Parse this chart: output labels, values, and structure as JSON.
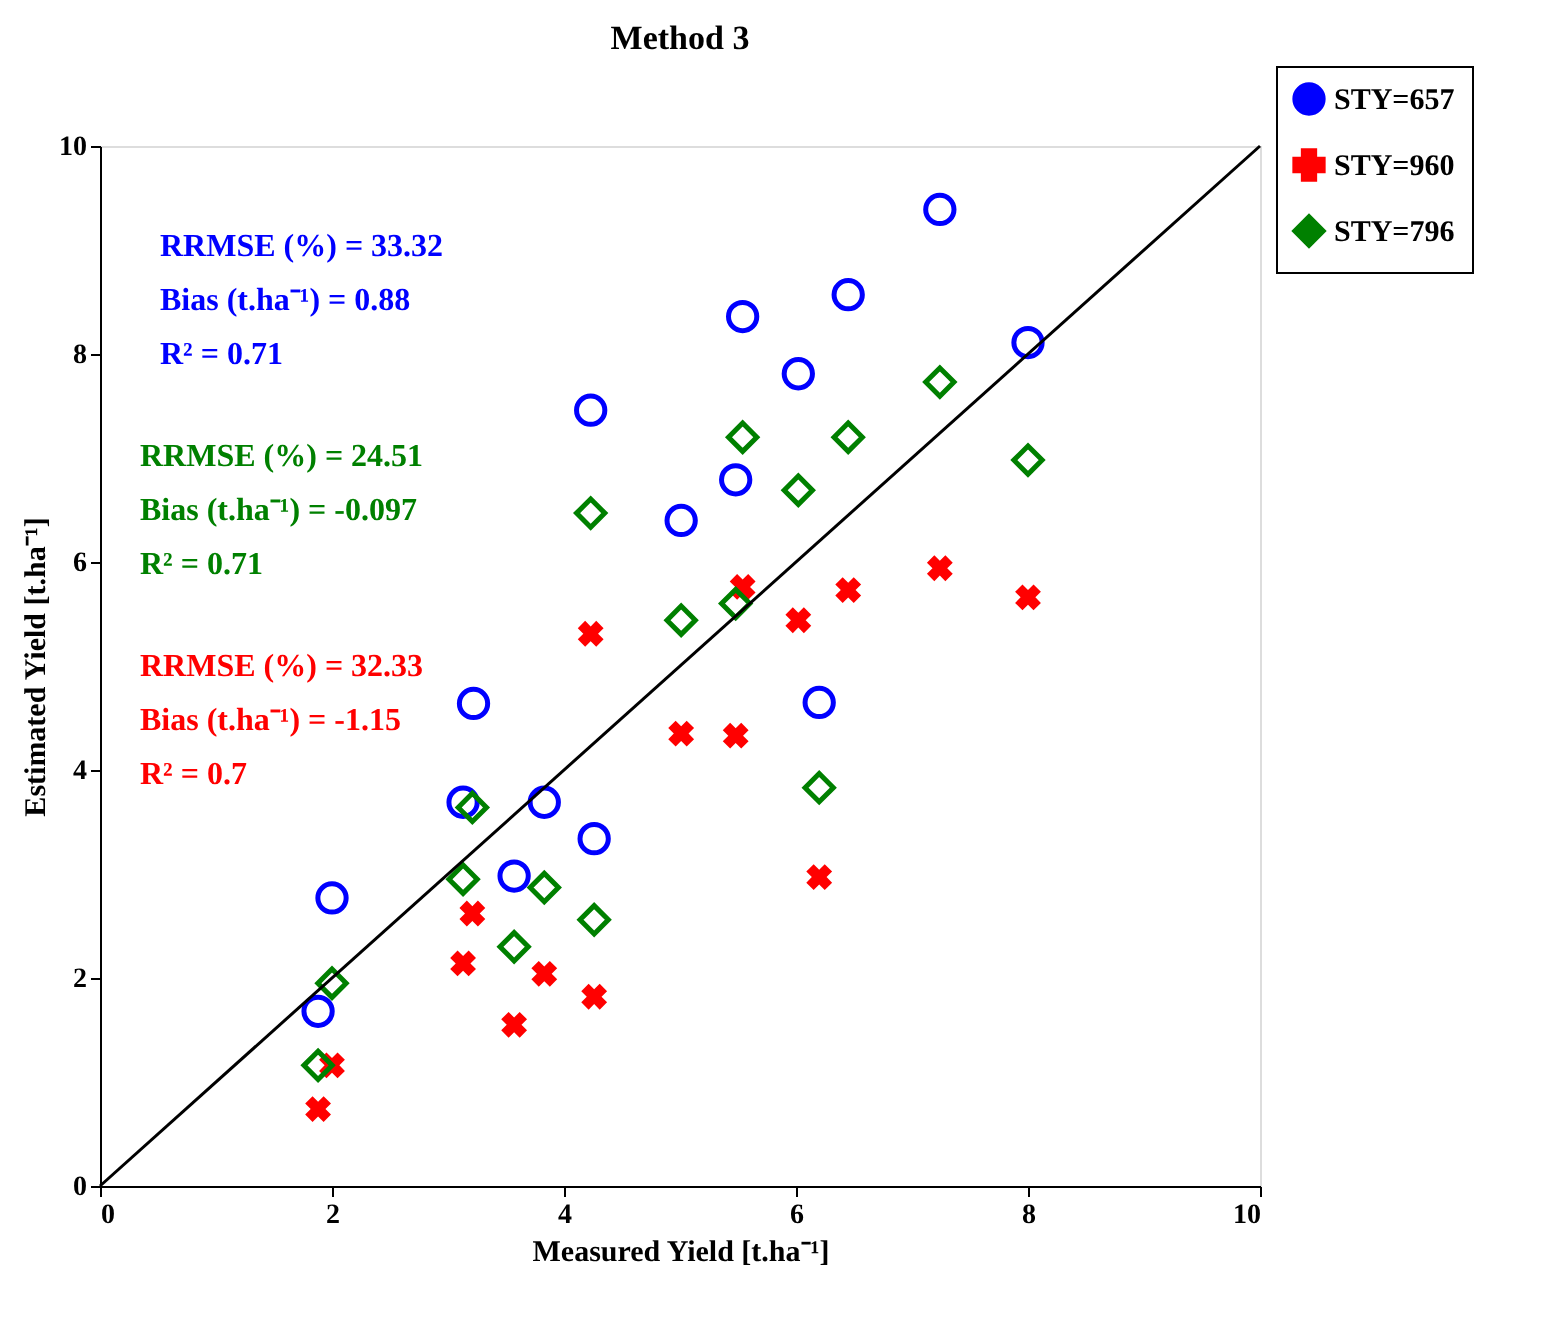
{
  "chart_data": {
    "type": "scatter",
    "title": "Method 3",
    "xlabel": "Measured Yield [t.ha⁻¹]",
    "ylabel": "Estimated Yield [t.ha⁻¹]",
    "xlim": [
      0,
      10
    ],
    "ylim": [
      0,
      10
    ],
    "xticks": [
      0,
      2,
      4,
      6,
      8,
      10
    ],
    "yticks": [
      0,
      2,
      4,
      6,
      8,
      10
    ],
    "grid": false,
    "legend": "top right",
    "series": [
      {
        "name": "STY=657",
        "color": "#0000ff",
        "marker": "circle",
        "x": [
          1.88,
          2.0,
          3.13,
          3.22,
          3.57,
          3.83,
          4.26,
          4.23,
          5.01,
          5.48,
          5.54,
          6.02,
          6.2,
          6.45,
          7.24,
          8.0
        ],
        "values": [
          1.68,
          2.77,
          3.69,
          4.64,
          2.98,
          3.69,
          3.34,
          7.46,
          6.4,
          6.79,
          8.36,
          7.81,
          4.65,
          8.57,
          9.39,
          8.11
        ]
      },
      {
        "name": "STY=960",
        "color": "#ff0000",
        "marker": "cross",
        "x": [
          1.88,
          2.0,
          3.13,
          3.21,
          3.57,
          3.83,
          4.26,
          4.23,
          5.01,
          5.48,
          5.54,
          6.02,
          6.2,
          6.45,
          7.24,
          8.0
        ],
        "values": [
          0.74,
          1.16,
          2.14,
          2.62,
          1.55,
          2.04,
          1.82,
          5.31,
          4.35,
          4.33,
          5.76,
          5.44,
          2.97,
          5.73,
          5.94,
          5.66
        ]
      },
      {
        "name": "STY=796",
        "color": "#008000",
        "marker": "diamond",
        "x": [
          1.88,
          2.0,
          3.13,
          3.21,
          3.57,
          3.83,
          4.26,
          4.23,
          5.01,
          5.48,
          5.54,
          6.02,
          6.2,
          6.45,
          7.24,
          8.0
        ],
        "values": [
          1.16,
          1.95,
          2.95,
          3.64,
          2.3,
          2.87,
          2.56,
          6.47,
          5.44,
          5.6,
          7.2,
          6.69,
          3.83,
          7.2,
          7.73,
          6.98
        ]
      },
      {
        "type": "line",
        "color": "#000000",
        "marker": "none",
        "x": [
          0,
          10
        ],
        "values": [
          0,
          10
        ]
      }
    ],
    "annotations": [
      "RRMSE (%) = 33.32",
      "Bias (t.ha⁻¹) = 0.88",
      "R² = 0.71",
      "RRMSE (%) = 24.51",
      "Bias (t.ha⁻¹) = -0.097",
      "R² = 0.71",
      "RRMSE (%) = 32.33",
      "Bias (t.ha⁻¹) = -1.15",
      "R² = 0.7"
    ]
  }
}
